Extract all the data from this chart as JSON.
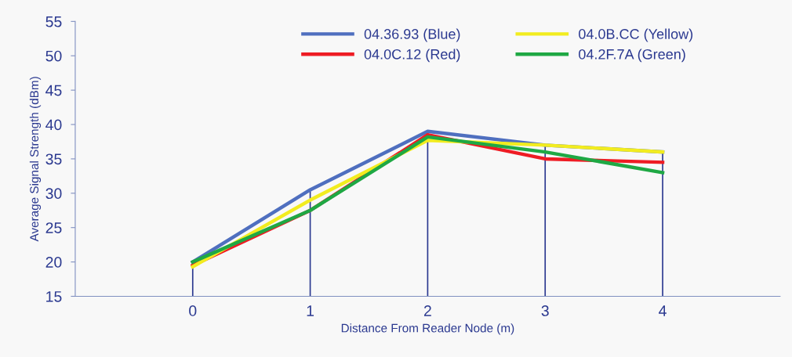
{
  "chart_data": {
    "type": "line",
    "xlabel": "Distance From Reader Node (m)",
    "ylabel": "Average Signal Strength (dBm)",
    "x": [
      0,
      1,
      2,
      3,
      4
    ],
    "xlim": [
      -1,
      5
    ],
    "xticks": [
      0,
      1,
      2,
      3,
      4
    ],
    "ylim": [
      15,
      55
    ],
    "yticks": [
      15,
      20,
      25,
      30,
      35,
      40,
      45,
      50,
      55
    ],
    "series": [
      {
        "name": "04.36.93 (Blue)",
        "color": "#4f6fbf",
        "values": [
          20,
          30.5,
          39,
          37,
          36
        ]
      },
      {
        "name": "04.0C.12 (Red)",
        "color": "#ee1c24",
        "values": [
          19.5,
          27.5,
          38.5,
          35,
          34.5
        ]
      },
      {
        "name": "04.0B.CC (Yellow)",
        "color": "#f2ec1f",
        "values": [
          19.3,
          29,
          37.7,
          37,
          36
        ]
      },
      {
        "name": "04.2F.7A (Green)",
        "color": "#1fa844",
        "values": [
          20,
          27.5,
          38.2,
          36,
          33
        ]
      }
    ],
    "ref_lines": [
      {
        "axis": "x",
        "value": 0,
        "color": "#2b3990"
      },
      {
        "axis": "x",
        "value": 1,
        "color": "#2b3990"
      },
      {
        "axis": "x",
        "value": 2,
        "color": "#2b3990"
      },
      {
        "axis": "x",
        "value": 3,
        "color": "#2b3990"
      },
      {
        "axis": "x",
        "value": 4,
        "color": "#2b3990"
      }
    ],
    "grid": false,
    "legend": "top",
    "marker": "none",
    "line_style": "solid"
  }
}
